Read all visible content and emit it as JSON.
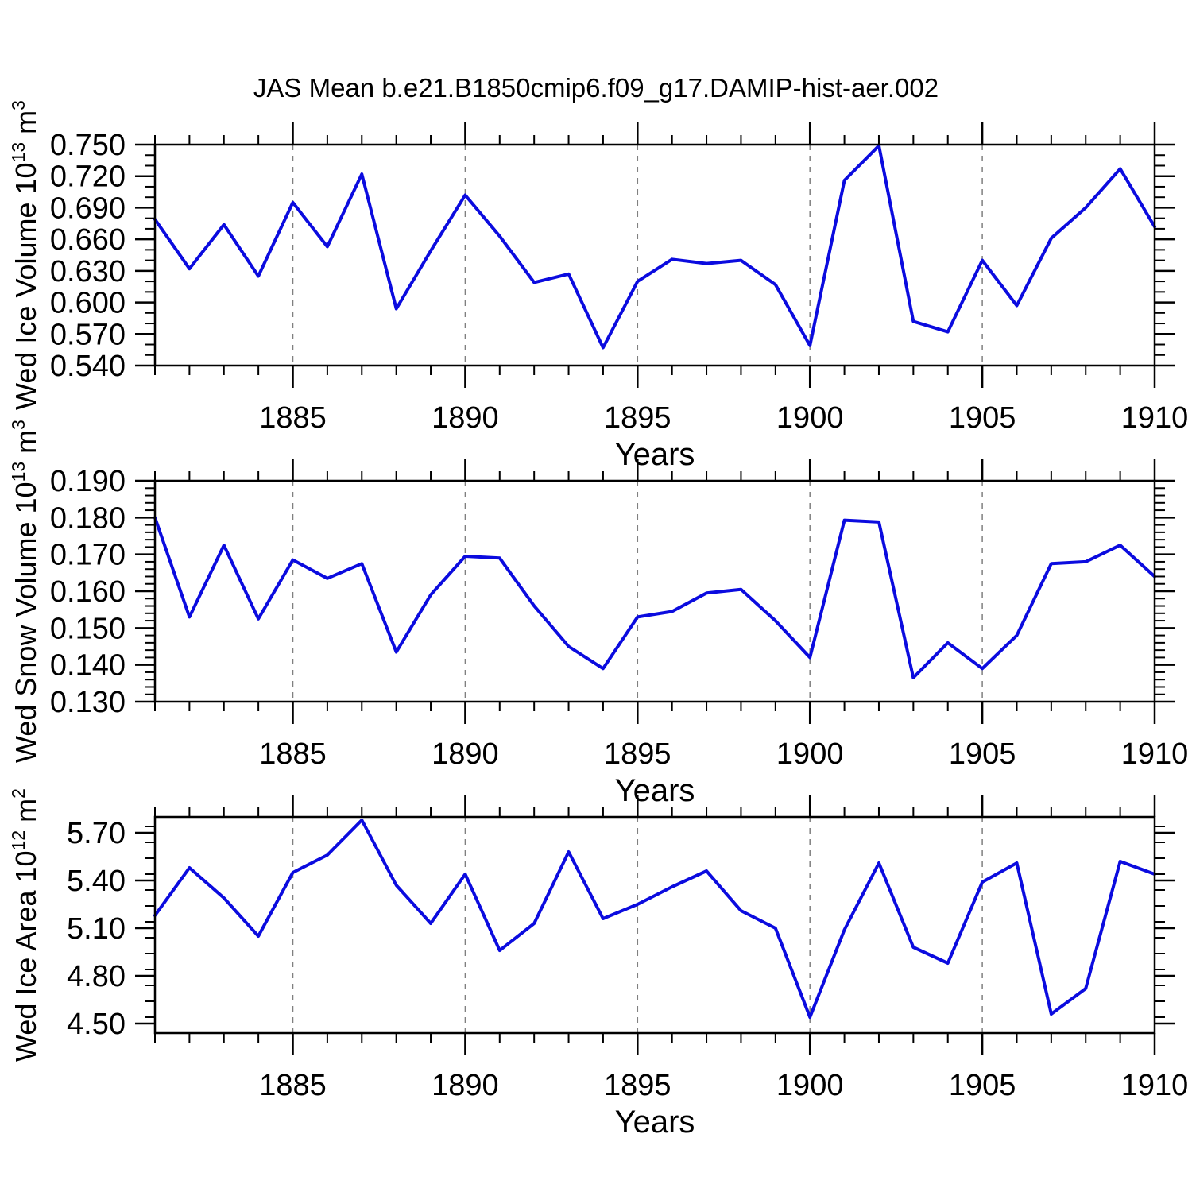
{
  "title": "JAS Mean b.e21.B1850cmip6.f09_g17.DAMIP-hist-aer.002",
  "x_axis": {
    "label": "Years",
    "range": [
      1881,
      1910
    ],
    "minor_step": 1,
    "major_ticks": [
      1885,
      1890,
      1895,
      1900,
      1905,
      1910
    ],
    "major_tick_labels": [
      "1885",
      "1890",
      "1895",
      "1900",
      "1905",
      "1910"
    ],
    "gridline_years": [
      1885,
      1890,
      1895,
      1900,
      1905
    ]
  },
  "years": [
    1881,
    1882,
    1883,
    1884,
    1885,
    1886,
    1887,
    1888,
    1889,
    1890,
    1891,
    1892,
    1893,
    1894,
    1895,
    1896,
    1897,
    1898,
    1899,
    1900,
    1901,
    1902,
    1903,
    1904,
    1905,
    1906,
    1907,
    1908,
    1909,
    1910
  ],
  "chart_data": [
    {
      "type": "line",
      "name": "wed-ice-volume",
      "ylabel": "Wed Ice Volume 10¹³ m³",
      "ylabel_segments": [
        {
          "text": "Wed Ice Volume 10",
          "sup": false
        },
        {
          "text": "13",
          "sup": true
        },
        {
          "text": " m",
          "sup": false
        },
        {
          "text": "3",
          "sup": true
        }
      ],
      "xlabel": "Years",
      "ylim": [
        0.54,
        0.75
      ],
      "yticks": [
        0.54,
        0.57,
        0.6,
        0.63,
        0.66,
        0.69,
        0.72,
        0.75
      ],
      "ytick_labels": [
        "0.540",
        "0.570",
        "0.600",
        "0.630",
        "0.660",
        "0.690",
        "0.720",
        "0.750"
      ],
      "yminor_step": 0.01,
      "values": [
        0.679,
        0.632,
        0.674,
        0.625,
        0.695,
        0.653,
        0.722,
        0.594,
        0.649,
        0.702,
        0.663,
        0.619,
        0.627,
        0.557,
        0.62,
        0.641,
        0.637,
        0.64,
        0.617,
        0.559,
        0.716,
        0.749,
        0.582,
        0.572,
        0.64,
        0.597,
        0.661,
        0.69,
        0.727,
        0.672
      ]
    },
    {
      "type": "line",
      "name": "wed-snow-volume",
      "ylabel": "Wed Snow Volume 10¹³ m³",
      "ylabel_segments": [
        {
          "text": "Wed Snow Volume 10",
          "sup": false
        },
        {
          "text": "13",
          "sup": true
        },
        {
          "text": " m",
          "sup": false
        },
        {
          "text": "3",
          "sup": true
        }
      ],
      "xlabel": "Years",
      "ylim": [
        0.13,
        0.19
      ],
      "yticks": [
        0.13,
        0.14,
        0.15,
        0.16,
        0.17,
        0.18,
        0.19
      ],
      "ytick_labels": [
        "0.130",
        "0.140",
        "0.150",
        "0.160",
        "0.170",
        "0.180",
        "0.190"
      ],
      "yminor_step": 0.002,
      "values": [
        0.18,
        0.153,
        0.1725,
        0.1525,
        0.1685,
        0.1635,
        0.1675,
        0.1435,
        0.159,
        0.1695,
        0.169,
        0.156,
        0.145,
        0.139,
        0.153,
        0.1545,
        0.1595,
        0.1605,
        0.152,
        0.142,
        0.1793,
        0.1788,
        0.1365,
        0.146,
        0.139,
        0.148,
        0.1675,
        0.168,
        0.1725,
        0.164
      ]
    },
    {
      "type": "line",
      "name": "wed-ice-area",
      "ylabel": "Wed Ice Area 10¹² m²",
      "ylabel_segments": [
        {
          "text": "Wed Ice Area 10",
          "sup": false
        },
        {
          "text": "12",
          "sup": true
        },
        {
          "text": " m",
          "sup": false
        },
        {
          "text": "2",
          "sup": true
        }
      ],
      "xlabel": "Years",
      "ylim": [
        4.44,
        5.8
      ],
      "yticks": [
        4.5,
        4.8,
        5.1,
        5.4,
        5.7
      ],
      "ytick_labels": [
        "4.50",
        "4.80",
        "5.10",
        "5.40",
        "5.70"
      ],
      "yminor_step": 0.1,
      "values": [
        5.18,
        5.48,
        5.29,
        5.05,
        5.45,
        5.56,
        5.78,
        5.37,
        5.13,
        5.44,
        4.96,
        5.13,
        5.58,
        5.16,
        5.25,
        5.36,
        5.46,
        5.21,
        5.1,
        4.54,
        5.09,
        5.51,
        4.98,
        4.88,
        5.39,
        5.51,
        4.56,
        4.72,
        5.52,
        5.44
      ]
    }
  ],
  "colors": {
    "line": "#0b0bdf",
    "axis": "#000000",
    "gridline": "#808080",
    "background": "#ffffff",
    "text": "#000000"
  }
}
